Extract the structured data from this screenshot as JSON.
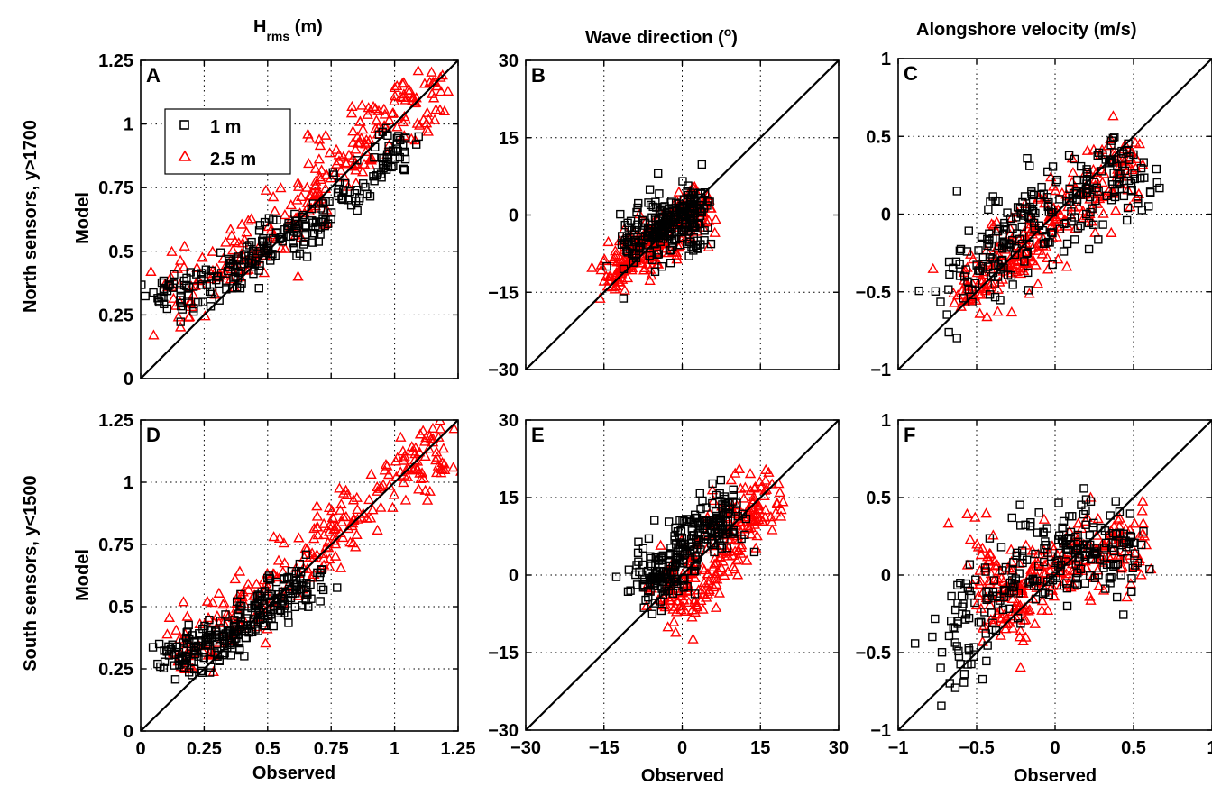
{
  "titles": {
    "col1_main": "H",
    "col1_sub": "rms",
    "col1_unit": " (m)",
    "col2": "Wave direction (",
    "col2_sup": "o",
    "col2_end": ")",
    "col3": "Alongshore velocity (m/s)"
  },
  "row_labels": {
    "north": "North sensors, y>1700",
    "south": "South sensors, y<1500"
  },
  "ylabel": "Model",
  "xlabel": "Observed",
  "legend": {
    "entries": [
      {
        "label": "1 m",
        "color": "#000000",
        "marker": "square"
      },
      {
        "label": "2.5 m",
        "color": "#ff0000",
        "marker": "triangle"
      }
    ]
  },
  "colors": {
    "series_1m": "#000000",
    "series_25m": "#ff0000",
    "grid": "#000000"
  },
  "chart_data": [
    {
      "panel": "A",
      "type": "scatter",
      "variable": "Hrms",
      "row": "north",
      "xlim": [
        0,
        1.25
      ],
      "ylim": [
        0,
        1.25
      ],
      "xticks": [
        "0",
        "0.25",
        "0.5",
        "0.75",
        "1",
        "1.25"
      ],
      "yticks": [
        "0",
        "0.25",
        "0.5",
        "0.75",
        "1",
        "1.25"
      ],
      "show_xticklabels": false,
      "grid": true,
      "reference_line": "1:1",
      "series": [
        {
          "name": "1 m",
          "center_line": [
            [
              0.05,
              0.31
            ],
            [
              0.3,
              0.38
            ],
            [
              0.5,
              0.52
            ],
            [
              0.75,
              0.66
            ],
            [
              1.05,
              0.95
            ]
          ],
          "spread": 0.05
        },
        {
          "name": "2.5 m",
          "center_line": [
            [
              0.1,
              0.34
            ],
            [
              0.4,
              0.48
            ],
            [
              0.7,
              0.72
            ],
            [
              0.9,
              0.98
            ],
            [
              1.2,
              1.12
            ]
          ],
          "spread": 0.07
        }
      ]
    },
    {
      "panel": "B",
      "type": "scatter",
      "variable": "Wave direction",
      "row": "north",
      "xlim": [
        -30,
        30
      ],
      "ylim": [
        -30,
        30
      ],
      "xticks": [
        "-30",
        "-15",
        "0",
        "15",
        "30"
      ],
      "yticks": [
        "-30",
        "-15",
        "0",
        "15",
        "30"
      ],
      "show_xticklabels": false,
      "grid": true,
      "reference_line": "1:1",
      "series": [
        {
          "name": "1 m",
          "center_line": [
            [
              -10,
              -5
            ],
            [
              -5,
              -3
            ],
            [
              0,
              -1
            ],
            [
              3,
              1
            ]
          ],
          "spread": 3
        },
        {
          "name": "2.5 m",
          "center_line": [
            [
              -15,
              -12
            ],
            [
              -8,
              -7
            ],
            [
              -2,
              -3
            ],
            [
              4,
              2
            ]
          ],
          "spread": 2.5
        }
      ]
    },
    {
      "panel": "C",
      "type": "scatter",
      "variable": "Alongshore velocity",
      "row": "north",
      "xlim": [
        -1,
        1
      ],
      "ylim": [
        -1,
        1
      ],
      "xticks": [
        "-1",
        "-0.5",
        "0",
        "0.5",
        "1"
      ],
      "yticks": [
        "-1",
        "-0.5",
        "0",
        "0.5",
        "1"
      ],
      "show_xticklabels": false,
      "grid": true,
      "reference_line": "1:1",
      "series": [
        {
          "name": "1 m",
          "center_line": [
            [
              -0.7,
              -0.5
            ],
            [
              -0.3,
              -0.15
            ],
            [
              0,
              0.02
            ],
            [
              0.3,
              0.2
            ],
            [
              0.55,
              0.35
            ]
          ],
          "spread": 0.15
        },
        {
          "name": "2.5 m",
          "center_line": [
            [
              -0.6,
              -0.55
            ],
            [
              -0.2,
              -0.25
            ],
            [
              0.1,
              0.05
            ],
            [
              0.5,
              0.35
            ]
          ],
          "spread": 0.12
        }
      ]
    },
    {
      "panel": "D",
      "type": "scatter",
      "variable": "Hrms",
      "row": "south",
      "xlim": [
        0,
        1.25
      ],
      "ylim": [
        0,
        1.25
      ],
      "xticks": [
        "0",
        "0.25",
        "0.5",
        "0.75",
        "1",
        "1.25"
      ],
      "yticks": [
        "0",
        "0.25",
        "0.5",
        "0.75",
        "1",
        "1.25"
      ],
      "show_xticklabels": true,
      "grid": true,
      "reference_line": "1:1",
      "series": [
        {
          "name": "1 m",
          "center_line": [
            [
              0.1,
              0.27
            ],
            [
              0.3,
              0.36
            ],
            [
              0.5,
              0.5
            ],
            [
              0.7,
              0.62
            ]
          ],
          "spread": 0.05
        },
        {
          "name": "2.5 m",
          "center_line": [
            [
              0.15,
              0.3
            ],
            [
              0.45,
              0.52
            ],
            [
              0.75,
              0.8
            ],
            [
              1.0,
              1.0
            ],
            [
              1.2,
              1.17
            ]
          ],
          "spread": 0.07
        }
      ]
    },
    {
      "panel": "E",
      "type": "scatter",
      "variable": "Wave direction",
      "row": "south",
      "xlim": [
        -30,
        30
      ],
      "ylim": [
        -30,
        30
      ],
      "xticks": [
        "-30",
        "-15",
        "0",
        "15",
        "30"
      ],
      "yticks": [
        "-30",
        "-15",
        "0",
        "15",
        "30"
      ],
      "show_xticklabels": true,
      "grid": true,
      "reference_line": "1:1",
      "series": [
        {
          "name": "1 m",
          "center_line": [
            [
              -8,
              -2
            ],
            [
              -2,
              2
            ],
            [
              3,
              9
            ],
            [
              10,
              11
            ]
          ],
          "spread": 3
        },
        {
          "name": "2.5 m",
          "center_line": [
            [
              -4,
              -2
            ],
            [
              2,
              -3
            ],
            [
              6,
              4
            ],
            [
              12,
              12
            ],
            [
              17,
              15
            ]
          ],
          "spread": 3.5
        }
      ]
    },
    {
      "panel": "F",
      "type": "scatter",
      "variable": "Alongshore velocity",
      "row": "south",
      "xlim": [
        -1,
        1
      ],
      "ylim": [
        -1,
        1
      ],
      "xticks": [
        "-1",
        "-0.5",
        "0",
        "0.5",
        "1"
      ],
      "yticks": [
        "-1",
        "-0.5",
        "0",
        "0.5",
        "1"
      ],
      "show_xticklabels": true,
      "grid": true,
      "reference_line": "1:1",
      "series": [
        {
          "name": "1 m",
          "center_line": [
            [
              -0.7,
              -0.6
            ],
            [
              -0.4,
              -0.05
            ],
            [
              0,
              0.12
            ],
            [
              0.3,
              0.2
            ],
            [
              0.5,
              0.15
            ]
          ],
          "spread": 0.15
        },
        {
          "name": "2.5 m",
          "center_line": [
            [
              -0.5,
              0.3
            ],
            [
              -0.35,
              -0.3
            ],
            [
              -0.1,
              0.0
            ],
            [
              0.2,
              0.15
            ],
            [
              0.55,
              0.2
            ]
          ],
          "spread": 0.12
        }
      ]
    }
  ]
}
